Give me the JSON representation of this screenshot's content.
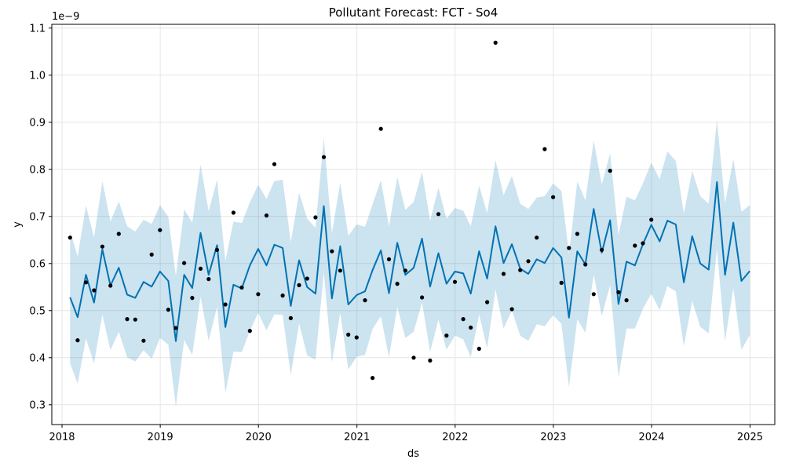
{
  "chart_data": {
    "type": "line",
    "title": "Pollutant Forecast: FCT - So4",
    "xlabel": "ds",
    "ylabel": "y",
    "y_offset_label": "1e−9",
    "x_ticks": [
      "2018",
      "2019",
      "2020",
      "2021",
      "2022",
      "2023",
      "2024",
      "2025"
    ],
    "y_ticks": [
      "0.3",
      "0.4",
      "0.5",
      "0.6",
      "0.7",
      "0.8",
      "0.9",
      "1.0",
      "1.1"
    ],
    "xlim": [
      "2017-11-24",
      "2025-04-03"
    ],
    "ylim": [
      0.258,
      1.108
    ],
    "grid": true,
    "colors": {
      "forecast_line": "#0072b2",
      "uncertainty_band": "#0072b2",
      "observations": "#000000",
      "grid": "#e6e6e6"
    },
    "forecast": {
      "x": [
        "2018-01-31",
        "2018-02-28",
        "2018-03-31",
        "2018-04-30",
        "2018-05-31",
        "2018-06-30",
        "2018-07-31",
        "2018-08-31",
        "2018-09-30",
        "2018-10-31",
        "2018-11-30",
        "2018-12-31",
        "2019-01-31",
        "2019-02-28",
        "2019-03-31",
        "2019-04-30",
        "2019-05-31",
        "2019-06-30",
        "2019-07-31",
        "2019-08-31",
        "2019-09-30",
        "2019-10-31",
        "2019-11-30",
        "2019-12-31",
        "2020-01-31",
        "2020-02-29",
        "2020-03-31",
        "2020-04-30",
        "2020-05-31",
        "2020-06-30",
        "2020-07-31",
        "2020-08-31",
        "2020-09-30",
        "2020-10-31",
        "2020-11-30",
        "2020-12-31",
        "2021-01-31",
        "2021-02-28",
        "2021-03-31",
        "2021-04-30",
        "2021-05-31",
        "2021-06-30",
        "2021-07-31",
        "2021-08-31",
        "2021-09-30",
        "2021-10-31",
        "2021-11-30",
        "2021-12-31",
        "2022-01-31",
        "2022-02-28",
        "2022-03-31",
        "2022-04-30",
        "2022-05-31",
        "2022-06-30",
        "2022-07-31",
        "2022-08-31",
        "2022-09-30",
        "2022-10-31",
        "2022-11-30",
        "2022-12-31",
        "2023-01-31",
        "2023-02-28",
        "2023-03-31",
        "2023-04-30",
        "2023-05-31",
        "2023-06-30",
        "2023-07-31",
        "2023-08-31",
        "2023-09-30",
        "2023-10-31",
        "2023-11-30",
        "2023-12-31",
        "2024-01-31",
        "2024-02-29",
        "2024-03-31",
        "2024-04-30",
        "2024-05-31",
        "2024-06-30",
        "2024-07-31",
        "2024-08-31",
        "2024-09-30",
        "2024-10-31",
        "2024-11-30",
        "2024-12-31"
      ],
      "yhat": [
        0.528,
        0.486,
        0.576,
        0.517,
        0.63,
        0.553,
        0.591,
        0.534,
        0.527,
        0.561,
        0.551,
        0.583,
        0.563,
        0.435,
        0.576,
        0.548,
        0.665,
        0.576,
        0.639,
        0.465,
        0.555,
        0.547,
        0.596,
        0.631,
        0.596,
        0.64,
        0.633,
        0.51,
        0.607,
        0.55,
        0.536,
        0.722,
        0.526,
        0.637,
        0.513,
        0.533,
        0.541,
        0.586,
        0.628,
        0.537,
        0.644,
        0.576,
        0.591,
        0.653,
        0.551,
        0.622,
        0.557,
        0.583,
        0.579,
        0.536,
        0.626,
        0.568,
        0.679,
        0.601,
        0.641,
        0.589,
        0.578,
        0.609,
        0.601,
        0.633,
        0.613,
        0.485,
        0.626,
        0.598,
        0.716,
        0.623,
        0.692,
        0.514,
        0.604,
        0.596,
        0.641,
        0.682,
        0.647,
        0.691,
        0.683,
        0.56,
        0.658,
        0.6,
        0.587,
        0.773,
        0.576,
        0.687,
        0.563,
        0.584
      ],
      "lower": [
        0.388,
        0.345,
        0.441,
        0.388,
        0.492,
        0.416,
        0.455,
        0.401,
        0.392,
        0.416,
        0.398,
        0.442,
        0.428,
        0.296,
        0.438,
        0.406,
        0.53,
        0.436,
        0.508,
        0.325,
        0.413,
        0.412,
        0.457,
        0.495,
        0.458,
        0.492,
        0.491,
        0.363,
        0.473,
        0.405,
        0.396,
        0.581,
        0.39,
        0.495,
        0.375,
        0.402,
        0.406,
        0.461,
        0.488,
        0.401,
        0.508,
        0.442,
        0.455,
        0.518,
        0.412,
        0.481,
        0.417,
        0.447,
        0.439,
        0.401,
        0.492,
        0.42,
        0.545,
        0.462,
        0.5,
        0.447,
        0.436,
        0.471,
        0.467,
        0.49,
        0.472,
        0.338,
        0.482,
        0.453,
        0.577,
        0.489,
        0.554,
        0.358,
        0.462,
        0.462,
        0.504,
        0.536,
        0.501,
        0.552,
        0.541,
        0.424,
        0.521,
        0.465,
        0.452,
        0.631,
        0.435,
        0.548,
        0.417,
        0.448
      ],
      "upper": [
        0.669,
        0.615,
        0.723,
        0.655,
        0.775,
        0.689,
        0.732,
        0.679,
        0.668,
        0.693,
        0.684,
        0.724,
        0.699,
        0.573,
        0.715,
        0.687,
        0.81,
        0.711,
        0.778,
        0.605,
        0.689,
        0.686,
        0.73,
        0.767,
        0.737,
        0.775,
        0.778,
        0.645,
        0.75,
        0.695,
        0.676,
        0.867,
        0.664,
        0.772,
        0.659,
        0.683,
        0.678,
        0.726,
        0.777,
        0.679,
        0.784,
        0.714,
        0.731,
        0.795,
        0.691,
        0.761,
        0.695,
        0.718,
        0.712,
        0.679,
        0.765,
        0.707,
        0.82,
        0.745,
        0.786,
        0.727,
        0.716,
        0.74,
        0.743,
        0.77,
        0.754,
        0.62,
        0.774,
        0.734,
        0.861,
        0.768,
        0.834,
        0.66,
        0.742,
        0.734,
        0.77,
        0.814,
        0.779,
        0.838,
        0.818,
        0.706,
        0.797,
        0.743,
        0.727,
        0.905,
        0.727,
        0.822,
        0.71,
        0.724
      ]
    },
    "observations": {
      "x": [
        "2018-01-31",
        "2018-02-28",
        "2018-03-31",
        "2018-04-30",
        "2018-05-31",
        "2018-06-30",
        "2018-07-31",
        "2018-08-31",
        "2018-09-30",
        "2018-10-31",
        "2018-11-30",
        "2018-12-31",
        "2019-01-31",
        "2019-02-28",
        "2019-03-31",
        "2019-04-30",
        "2019-05-31",
        "2019-06-30",
        "2019-07-31",
        "2019-08-31",
        "2019-09-30",
        "2019-10-31",
        "2019-11-30",
        "2019-12-31",
        "2020-01-31",
        "2020-02-29",
        "2020-03-31",
        "2020-04-30",
        "2020-05-31",
        "2020-06-30",
        "2020-07-31",
        "2020-08-31",
        "2020-09-30",
        "2020-10-31",
        "2020-11-30",
        "2020-12-31",
        "2021-01-31",
        "2021-02-28",
        "2021-03-31",
        "2021-04-30",
        "2021-05-31",
        "2021-06-30",
        "2021-07-31",
        "2021-08-31",
        "2021-09-30",
        "2021-10-31",
        "2021-11-30",
        "2021-12-31",
        "2022-01-31",
        "2022-02-28",
        "2022-03-31",
        "2022-04-30",
        "2022-05-31",
        "2022-06-30",
        "2022-07-31",
        "2022-08-31",
        "2022-09-30",
        "2022-10-31",
        "2022-11-30",
        "2022-12-31",
        "2023-01-31",
        "2023-02-28",
        "2023-03-31",
        "2023-04-30",
        "2023-05-31",
        "2023-06-30",
        "2023-07-31",
        "2023-08-31",
        "2023-09-30",
        "2023-10-31",
        "2023-11-30",
        "2023-12-31"
      ],
      "y": [
        0.655,
        0.437,
        0.56,
        0.543,
        0.636,
        0.553,
        0.663,
        0.482,
        0.481,
        0.436,
        0.619,
        0.671,
        0.502,
        0.463,
        0.601,
        0.527,
        0.589,
        0.567,
        0.629,
        0.513,
        0.708,
        0.549,
        0.457,
        0.535,
        0.702,
        0.811,
        0.532,
        0.484,
        0.554,
        0.568,
        0.698,
        0.826,
        0.626,
        0.585,
        0.449,
        0.443,
        0.522,
        0.357,
        0.886,
        0.609,
        0.557,
        0.585,
        0.4,
        0.528,
        0.394,
        0.705,
        0.447,
        0.561,
        0.482,
        0.464,
        0.419,
        0.518,
        1.069,
        0.578,
        0.503,
        0.586,
        0.605,
        0.655,
        0.843,
        0.741,
        0.559,
        0.633,
        0.663,
        0.598,
        0.535,
        0.629,
        0.797,
        0.539,
        0.522,
        0.638,
        0.643,
        0.693
      ]
    }
  }
}
